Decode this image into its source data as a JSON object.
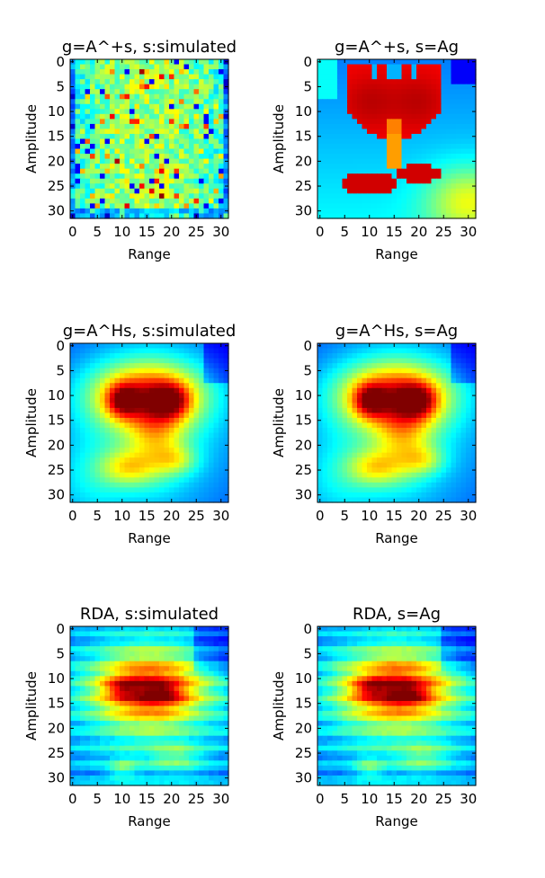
{
  "chart_data": [
    {
      "type": "heatmap",
      "panel": 0,
      "title": "g=A^+s, s:simulated",
      "xlabel": "Range",
      "ylabel": "Amplitude",
      "xlim": [
        0,
        31
      ],
      "ylim": [
        31,
        0
      ],
      "xticks": [
        0,
        5,
        10,
        15,
        20,
        25,
        30
      ],
      "yticks": [
        0,
        5,
        10,
        15,
        20,
        25,
        30
      ],
      "colormap": "jet",
      "pattern": "noise"
    },
    {
      "type": "heatmap",
      "panel": 1,
      "title": "g=A^+s, s=Ag",
      "xlabel": "Range",
      "ylabel": "Amplitude",
      "xlim": [
        0,
        31
      ],
      "ylim": [
        31,
        0
      ],
      "xticks": [
        0,
        5,
        10,
        15,
        20,
        25,
        30
      ],
      "yticks": [
        0,
        5,
        10,
        15,
        20,
        25,
        30
      ],
      "colormap": "jet",
      "pattern": "flower-sharp"
    },
    {
      "type": "heatmap",
      "panel": 2,
      "title": "g=A^Hs, s:simulated",
      "xlabel": "Range",
      "ylabel": "Amplitude",
      "xlim": [
        0,
        31
      ],
      "ylim": [
        31,
        0
      ],
      "xticks": [
        0,
        5,
        10,
        15,
        20,
        25,
        30
      ],
      "yticks": [
        0,
        5,
        10,
        15,
        20,
        25,
        30
      ],
      "colormap": "jet",
      "pattern": "flower-blur"
    },
    {
      "type": "heatmap",
      "panel": 3,
      "title": "g=A^Hs, s=Ag",
      "xlabel": "Range",
      "ylabel": "Amplitude",
      "xlim": [
        0,
        31
      ],
      "ylim": [
        31,
        0
      ],
      "xticks": [
        0,
        5,
        10,
        15,
        20,
        25,
        30
      ],
      "yticks": [
        0,
        5,
        10,
        15,
        20,
        25,
        30
      ],
      "colormap": "jet",
      "pattern": "flower-blur"
    },
    {
      "type": "heatmap",
      "panel": 4,
      "title": "RDA, s:simulated",
      "xlabel": "Range",
      "ylabel": "Amplitude",
      "xlim": [
        0,
        31
      ],
      "ylim": [
        31,
        0
      ],
      "xticks": [
        0,
        5,
        10,
        15,
        20,
        25,
        30
      ],
      "yticks": [
        0,
        5,
        10,
        15,
        20,
        25,
        30
      ],
      "colormap": "jet",
      "pattern": "rda"
    },
    {
      "type": "heatmap",
      "panel": 5,
      "title": "RDA, s=Ag",
      "xlabel": "Range",
      "ylabel": "Amplitude",
      "xlim": [
        0,
        31
      ],
      "ylim": [
        31,
        0
      ],
      "xticks": [
        0,
        5,
        10,
        15,
        20,
        25,
        30
      ],
      "yticks": [
        0,
        5,
        10,
        15,
        20,
        25,
        30
      ],
      "colormap": "jet",
      "pattern": "rda"
    }
  ]
}
